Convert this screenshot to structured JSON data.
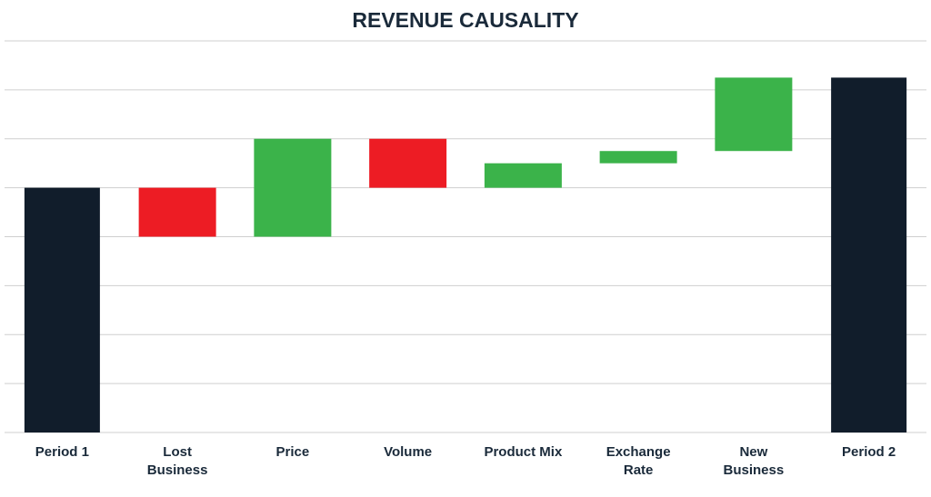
{
  "chart_data": {
    "type": "waterfall",
    "title": "REVENUE CAUSALITY",
    "categories": [
      "Period 1",
      "Lost\nBusiness",
      "Price",
      "Volume",
      "Product Mix",
      "Exchange\nRate",
      "New\nBusiness",
      "Period 2"
    ],
    "values": [
      5,
      -1,
      2,
      -1,
      0.5,
      0.25,
      1.5,
      7.25
    ],
    "is_total": [
      true,
      false,
      false,
      false,
      false,
      false,
      false,
      true
    ],
    "total_color": "#111d2b",
    "increase_color": "#3bb34a",
    "decrease_color": "#ed1c24",
    "ylim": [
      0,
      8
    ],
    "yticks": [
      0,
      1,
      2,
      3,
      4,
      5,
      6,
      7,
      8
    ],
    "grid": true,
    "show_tick_labels": false
  }
}
